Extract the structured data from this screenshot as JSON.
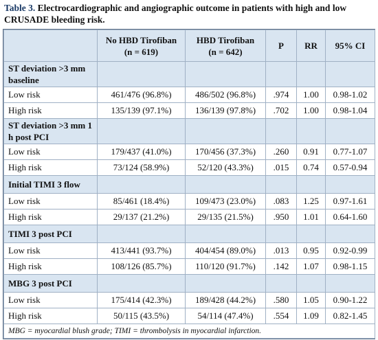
{
  "title": {
    "label": "Table 3.",
    "text": "Electrocardiographic and angiographic outcome in patients with high and low CRUSADE bleeding risk."
  },
  "table": {
    "header": [
      [
        "No HBD Tirofiban",
        "(n = 619)"
      ],
      [
        "HBD Tirofiban",
        "(n = 642)"
      ],
      [
        "P"
      ],
      [
        "RR"
      ],
      [
        "95% CI"
      ]
    ],
    "sections": [
      {
        "label": "ST deviation >3 mm baseline",
        "rows": [
          [
            "Low risk",
            "461/476 (96.8%)",
            "486/502 (96.8%)",
            ".974",
            "1.00",
            "0.98-1.02"
          ],
          [
            "High risk",
            "135/139 (97.1%)",
            "136/139 (97.8%)",
            ".702",
            "1.00",
            "0.98-1.04"
          ]
        ]
      },
      {
        "label": "ST deviation >3 mm 1 h post PCI",
        "rows": [
          [
            "Low risk",
            "179/437 (41.0%)",
            "170/456 (37.3%)",
            ".260",
            "0.91",
            "0.77-1.07"
          ],
          [
            "High risk",
            "73/124 (58.9%)",
            "52/120 (43.3%)",
            ".015",
            "0.74",
            "0.57-0.94"
          ]
        ]
      },
      {
        "label": "Initial TIMI 3 flow",
        "rows": [
          [
            "Low risk",
            "85/461 (18.4%)",
            "109/473 (23.0%)",
            ".083",
            "1.25",
            "0.97-1.61"
          ],
          [
            "High risk",
            "29/137 (21.2%)",
            "29/135 (21.5%)",
            ".950",
            "1.01",
            "0.64-1.60"
          ]
        ]
      },
      {
        "label": "TIMI 3 post PCI",
        "rows": [
          [
            "Low risk",
            "413/441 (93.7%)",
            "404/454 (89.0%)",
            ".013",
            "0.95",
            "0.92-0.99"
          ],
          [
            "High risk",
            "108/126 (85.7%)",
            "110/120 (91.7%)",
            ".142",
            "1.07",
            "0.98-1.15"
          ]
        ]
      },
      {
        "label": "MBG 3 post PCI",
        "rows": [
          [
            "Low risk",
            "175/414 (42.3%)",
            "189/428 (44.2%)",
            ".580",
            "1.05",
            "0.90-1.22"
          ],
          [
            "High risk",
            "50/115 (43.5%)",
            "54/114 (47.4%)",
            ".554",
            "1.09",
            "0.82-1.45"
          ]
        ]
      }
    ]
  },
  "footnote": "MBG = myocardial blush grade; TIMI = thrombolysis in myocardial infarction."
}
